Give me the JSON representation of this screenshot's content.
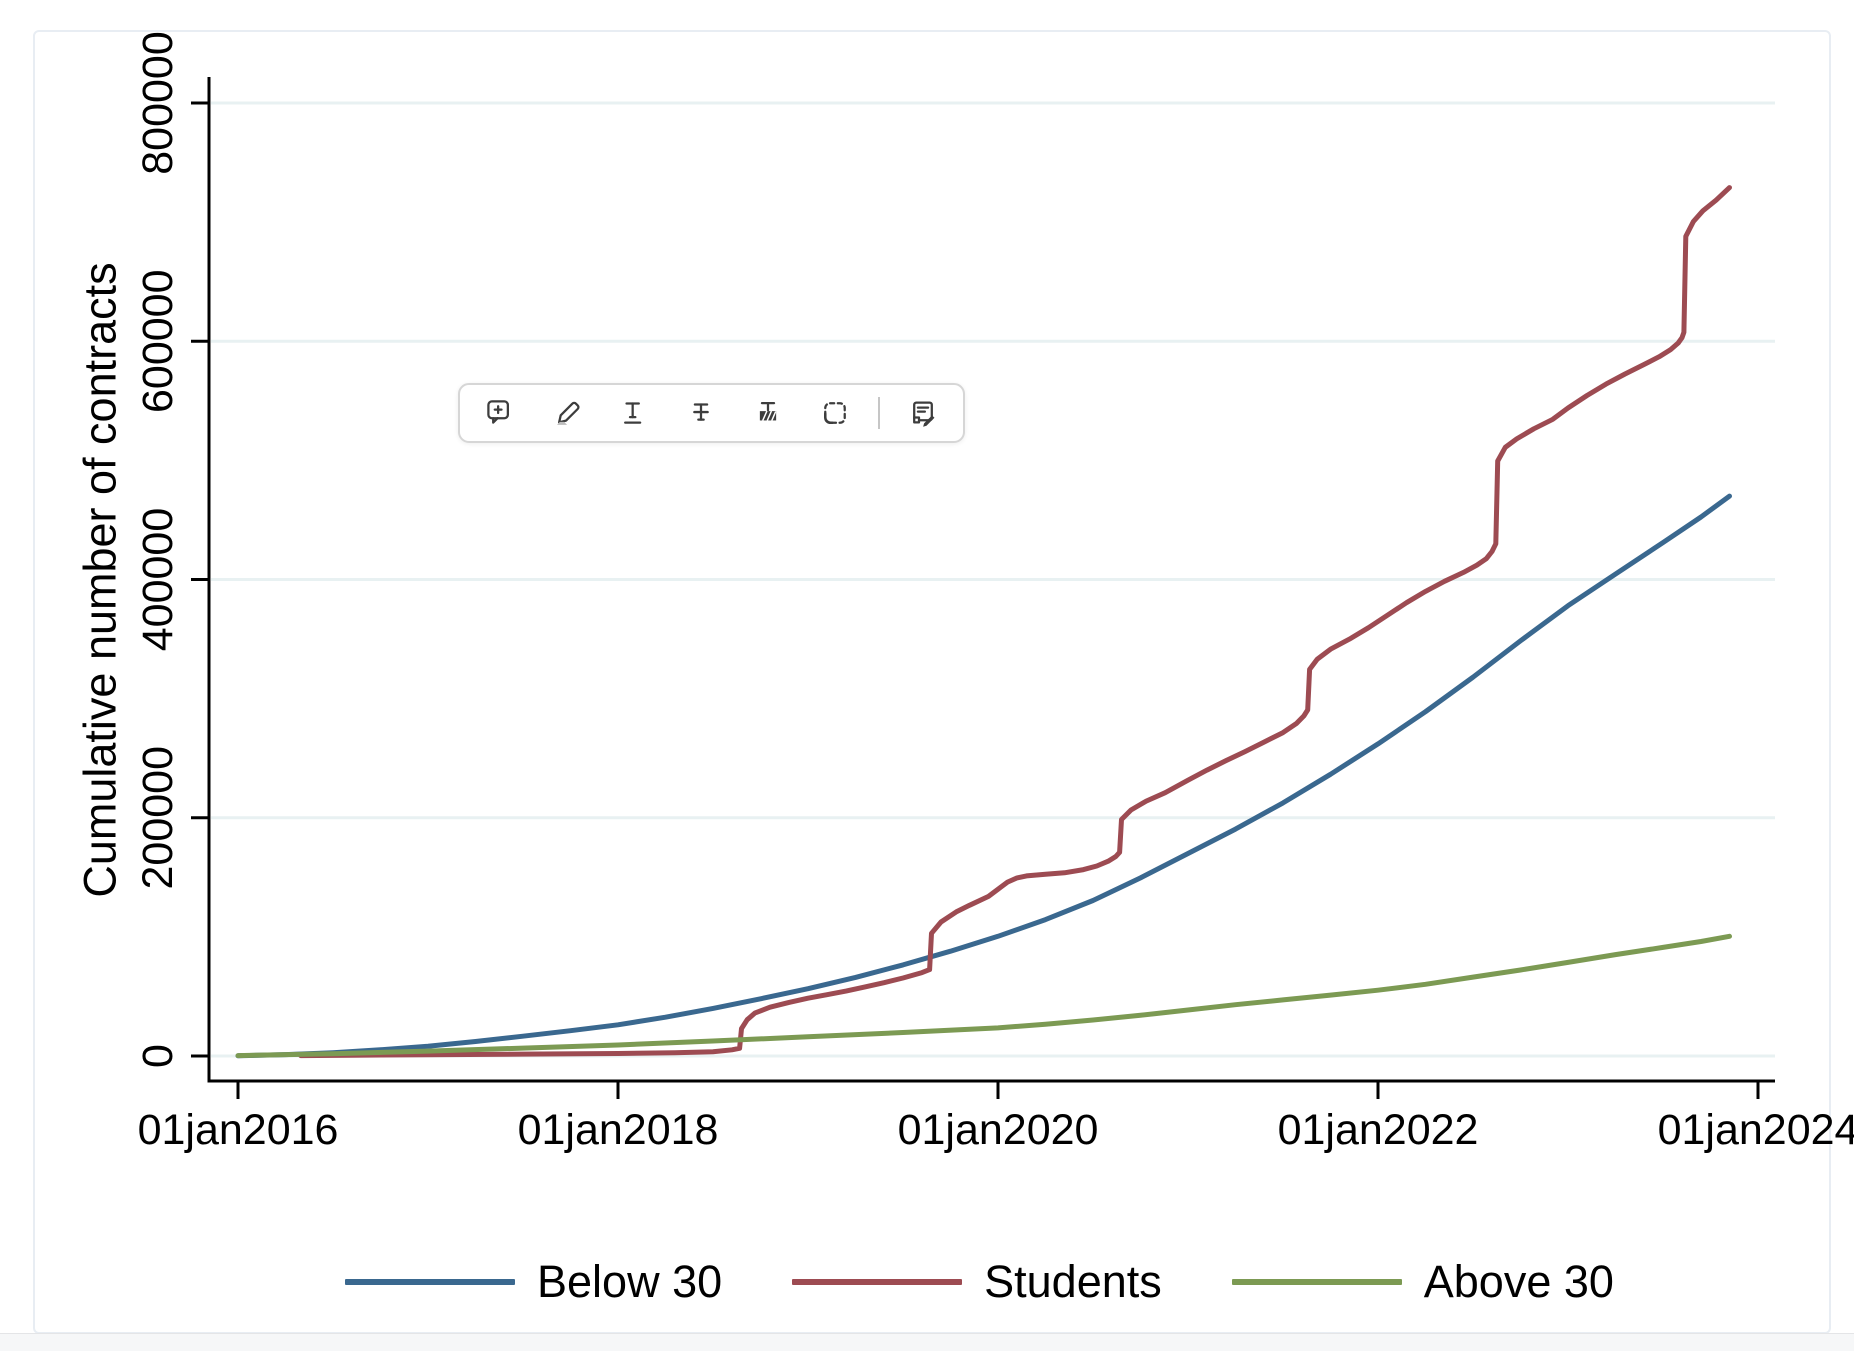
{
  "toolbar": {
    "icons": [
      {
        "name": "add-comment-icon"
      },
      {
        "name": "highlighter-icon"
      },
      {
        "name": "underline-text-icon"
      },
      {
        "name": "strikethrough-text-icon"
      },
      {
        "name": "redact-text-icon"
      },
      {
        "name": "selection-icon"
      },
      {
        "name": "divider"
      },
      {
        "name": "edit-note-icon"
      }
    ]
  },
  "chart_data": {
    "type": "line",
    "title": "",
    "xlabel": "",
    "ylabel": "Cumulative number of contracts",
    "ylim": [
      0,
      800000
    ],
    "xlim_years_after_2016": [
      0,
      8.09
    ],
    "grid": "horizontal",
    "grid_color": "#e8f1f2",
    "axis_color": "#000000",
    "legend_position": "bottom",
    "y_ticks": [
      {
        "value": 0,
        "label": "0"
      },
      {
        "value": 200000,
        "label": "200000"
      },
      {
        "value": 400000,
        "label": "400000"
      },
      {
        "value": 600000,
        "label": "600000"
      },
      {
        "value": 800000,
        "label": "800000"
      }
    ],
    "x_ticks": [
      {
        "t": 0,
        "label": "01jan2016"
      },
      {
        "t": 2,
        "label": "01jan2018"
      },
      {
        "t": 4,
        "label": "01jan2020"
      },
      {
        "t": 6,
        "label": "01jan2022"
      },
      {
        "t": 8,
        "label": "01jan2024"
      }
    ],
    "series": [
      {
        "name": "Below 30",
        "color": "#3a688f",
        "points": [
          [
            0,
            200
          ],
          [
            0.25,
            1200
          ],
          [
            0.5,
            2800
          ],
          [
            0.75,
            5200
          ],
          [
            1.0,
            8200
          ],
          [
            1.25,
            12200
          ],
          [
            1.5,
            16600
          ],
          [
            1.75,
            21200
          ],
          [
            2.0,
            26200
          ],
          [
            2.25,
            32600
          ],
          [
            2.5,
            40000
          ],
          [
            2.75,
            48000
          ],
          [
            3.0,
            56500
          ],
          [
            3.25,
            66000
          ],
          [
            3.5,
            76500
          ],
          [
            3.75,
            88000
          ],
          [
            4.0,
            100500
          ],
          [
            4.25,
            114500
          ],
          [
            4.5,
            130500
          ],
          [
            4.75,
            149500
          ],
          [
            5.0,
            170000
          ],
          [
            5.25,
            190500
          ],
          [
            5.5,
            212500
          ],
          [
            5.75,
            236500
          ],
          [
            6.0,
            262000
          ],
          [
            6.25,
            289000
          ],
          [
            6.5,
            318000
          ],
          [
            6.75,
            348500
          ],
          [
            7.0,
            378000
          ],
          [
            7.25,
            404500
          ],
          [
            7.5,
            431000
          ],
          [
            7.7,
            452500
          ],
          [
            7.85,
            470000
          ]
        ]
      },
      {
        "name": "Students",
        "color": "#9d4b52",
        "points": [
          [
            0.33,
            300
          ],
          [
            0.6,
            700
          ],
          [
            1.0,
            1100
          ],
          [
            1.5,
            1600
          ],
          [
            2.0,
            2100
          ],
          [
            2.3,
            2700
          ],
          [
            2.5,
            3600
          ],
          [
            2.6,
            5200
          ],
          [
            2.64,
            6500
          ],
          [
            2.65,
            23000
          ],
          [
            2.68,
            30500
          ],
          [
            2.72,
            36000
          ],
          [
            2.8,
            41000
          ],
          [
            2.9,
            45000
          ],
          [
            3.0,
            48500
          ],
          [
            3.1,
            51500
          ],
          [
            3.2,
            54500
          ],
          [
            3.3,
            58000
          ],
          [
            3.4,
            61500
          ],
          [
            3.5,
            65500
          ],
          [
            3.6,
            70000
          ],
          [
            3.64,
            72500
          ],
          [
            3.65,
            103000
          ],
          [
            3.7,
            112500
          ],
          [
            3.78,
            121000
          ],
          [
            3.85,
            126500
          ],
          [
            3.95,
            134000
          ],
          [
            4.0,
            140000
          ],
          [
            4.05,
            146000
          ],
          [
            4.1,
            149500
          ],
          [
            4.15,
            151200
          ],
          [
            4.25,
            152600
          ],
          [
            4.35,
            153800
          ],
          [
            4.45,
            156500
          ],
          [
            4.52,
            159500
          ],
          [
            4.58,
            163500
          ],
          [
            4.62,
            167500
          ],
          [
            4.64,
            171000
          ],
          [
            4.65,
            198500
          ],
          [
            4.7,
            206500
          ],
          [
            4.78,
            214000
          ],
          [
            4.88,
            221000
          ],
          [
            5.0,
            231500
          ],
          [
            5.1,
            240000
          ],
          [
            5.2,
            248000
          ],
          [
            5.3,
            255500
          ],
          [
            5.4,
            263500
          ],
          [
            5.5,
            271500
          ],
          [
            5.57,
            279000
          ],
          [
            5.61,
            285500
          ],
          [
            5.63,
            290500
          ],
          [
            5.64,
            324500
          ],
          [
            5.68,
            333000
          ],
          [
            5.75,
            341500
          ],
          [
            5.85,
            350000
          ],
          [
            5.95,
            359500
          ],
          [
            6.05,
            370000
          ],
          [
            6.15,
            380500
          ],
          [
            6.25,
            390000
          ],
          [
            6.35,
            398500
          ],
          [
            6.45,
            406000
          ],
          [
            6.52,
            412000
          ],
          [
            6.57,
            417500
          ],
          [
            6.6,
            423500
          ],
          [
            6.62,
            430000
          ],
          [
            6.63,
            499500
          ],
          [
            6.67,
            511000
          ],
          [
            6.73,
            518000
          ],
          [
            6.82,
            526500
          ],
          [
            6.92,
            534500
          ],
          [
            7.0,
            544000
          ],
          [
            7.1,
            554500
          ],
          [
            7.2,
            564000
          ],
          [
            7.3,
            572500
          ],
          [
            7.4,
            580500
          ],
          [
            7.48,
            587000
          ],
          [
            7.54,
            593000
          ],
          [
            7.58,
            598500
          ],
          [
            7.6,
            603000
          ],
          [
            7.61,
            607500
          ],
          [
            7.62,
            688000
          ],
          [
            7.66,
            700500
          ],
          [
            7.71,
            709500
          ],
          [
            7.78,
            718500
          ],
          [
            7.85,
            729000
          ]
        ]
      },
      {
        "name": "Above 30",
        "color": "#7c9a53",
        "points": [
          [
            0,
            300
          ],
          [
            0.5,
            1900
          ],
          [
            1.0,
            4100
          ],
          [
            1.5,
            6600
          ],
          [
            2.0,
            9200
          ],
          [
            2.5,
            12600
          ],
          [
            3.0,
            16100
          ],
          [
            3.5,
            19700
          ],
          [
            4.0,
            23600
          ],
          [
            4.25,
            26700
          ],
          [
            4.5,
            30200
          ],
          [
            4.75,
            34200
          ],
          [
            5.0,
            38600
          ],
          [
            5.25,
            43100
          ],
          [
            5.5,
            47100
          ],
          [
            5.75,
            51100
          ],
          [
            6.0,
            55200
          ],
          [
            6.25,
            60200
          ],
          [
            6.5,
            66200
          ],
          [
            6.75,
            72200
          ],
          [
            7.0,
            78600
          ],
          [
            7.25,
            85100
          ],
          [
            7.5,
            91200
          ],
          [
            7.7,
            96100
          ],
          [
            7.85,
            100500
          ]
        ]
      }
    ]
  }
}
